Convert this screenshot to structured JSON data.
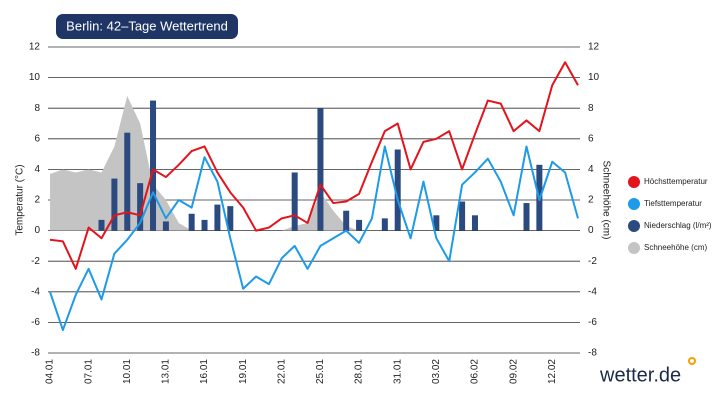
{
  "chart_data": {
    "type": "line",
    "title": "Berlin: 42–Tage Wettertrend",
    "y_label": "Temperatur (°C)",
    "y2_label": "Schneehöhe (cm)",
    "categories": [
      "04.01",
      null,
      null,
      "07.01",
      null,
      null,
      "10.01",
      null,
      null,
      "13.01",
      null,
      null,
      "16.01",
      null,
      null,
      "19.01",
      null,
      null,
      "22.01",
      null,
      null,
      "25.01",
      null,
      null,
      "28.01",
      null,
      null,
      "31.01",
      null,
      null,
      "03.02",
      null,
      null,
      "06.02",
      null,
      null,
      "09.02",
      null,
      null,
      "12.02",
      null,
      null
    ],
    "ylim": [
      -8,
      12
    ],
    "yticks": [
      -8,
      -6,
      -4,
      -2,
      0,
      2,
      4,
      6,
      8,
      10,
      12
    ],
    "y2lim": [
      -8,
      12
    ],
    "y2ticks": [
      -8,
      -6,
      -4,
      -2,
      0,
      2,
      4,
      6,
      8,
      10,
      12
    ],
    "grid": true,
    "series": [
      {
        "name": "Schneehöhe (cm)",
        "type": "area",
        "axis": "y2",
        "color": "#c4c4c4",
        "values": [
          3.7,
          4.0,
          3.8,
          4.0,
          3.8,
          5.5,
          8.8,
          7.0,
          3.0,
          2.0,
          0.5,
          0,
          0,
          0,
          0,
          0,
          0,
          0,
          0,
          0.3,
          0.5,
          2.5,
          1.3,
          0.3,
          0,
          0,
          0,
          0,
          0,
          0,
          0,
          0,
          0,
          0,
          0,
          0,
          0,
          0,
          0,
          0,
          0,
          0
        ]
      },
      {
        "name": "Niederschlag (l/m²)",
        "type": "bar",
        "color": "#2b4a80",
        "values": [
          0,
          0,
          0,
          0,
          0.7,
          3.4,
          6.4,
          3.1,
          8.5,
          0.6,
          0,
          1.1,
          0.7,
          1.7,
          1.6,
          0,
          0,
          0,
          0,
          3.8,
          0,
          8.0,
          0,
          1.3,
          0.7,
          0,
          0.8,
          5.3,
          0,
          0,
          1.0,
          0,
          1.9,
          1.0,
          0,
          0,
          0,
          1.8,
          4.3,
          0,
          0,
          0
        ]
      },
      {
        "name": "Höchsttemperatur",
        "type": "line",
        "color": "#e3141b",
        "values": [
          -0.6,
          -0.7,
          -2.5,
          0.2,
          -0.5,
          1.0,
          1.2,
          1.0,
          4.0,
          3.5,
          4.3,
          5.2,
          5.5,
          3.8,
          2.5,
          1.5,
          0.0,
          0.2,
          0.8,
          1.0,
          0.5,
          3.0,
          1.8,
          1.9,
          2.4,
          4.5,
          6.5,
          7.0,
          4.0,
          5.8,
          6.0,
          6.5,
          4.0,
          6.3,
          8.5,
          8.3,
          6.5,
          7.2,
          6.5,
          9.5,
          11.0,
          9.5
        ]
      },
      {
        "name": "Tiefsttemperatur",
        "type": "line",
        "color": "#1e9be8",
        "values": [
          -4.0,
          -6.5,
          -4.2,
          -2.5,
          -4.5,
          -1.5,
          -0.6,
          0.5,
          2.5,
          0.8,
          2.0,
          1.5,
          4.8,
          3.2,
          -0.5,
          -3.8,
          -3.0,
          -3.5,
          -1.8,
          -1.0,
          -2.5,
          -1.0,
          -0.5,
          0.0,
          -0.8,
          0.8,
          5.5,
          2.0,
          -0.5,
          3.2,
          -0.5,
          -2.0,
          3.0,
          3.8,
          4.7,
          3.2,
          1.0,
          5.5,
          2.0,
          4.5,
          3.8,
          0.8
        ]
      }
    ],
    "legend_position": "right"
  },
  "logo": "wetter.de"
}
